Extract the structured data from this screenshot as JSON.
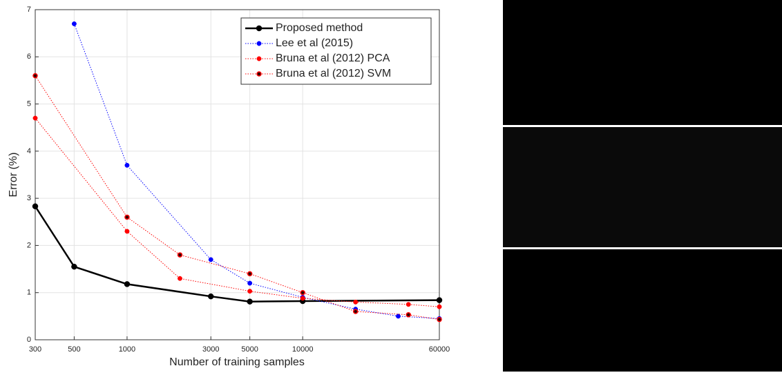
{
  "chart_data": {
    "type": "line",
    "xlabel": "Number of training samples",
    "ylabel": "Error (%)",
    "xscale": "log",
    "xlim": [
      300,
      60000
    ],
    "xticks": [
      300,
      500,
      1000,
      3000,
      5000,
      10000,
      60000
    ],
    "ylim": [
      0,
      7
    ],
    "yticks": [
      0,
      1,
      2,
      3,
      4,
      5,
      6,
      7
    ],
    "grid": true,
    "legend": "upper right",
    "series": [
      {
        "name": "Proposed method",
        "color": "#000000",
        "style": "solid",
        "marker": "black",
        "x": [
          300,
          500,
          1000,
          3000,
          5000,
          10000,
          60000
        ],
        "values": [
          2.83,
          1.55,
          1.18,
          0.92,
          0.81,
          0.82,
          0.84
        ]
      },
      {
        "name": "Lee et al (2015)",
        "color": "#0000ff",
        "style": "dotted",
        "marker": "blue",
        "x": [
          500,
          1000,
          3000,
          5000,
          10000,
          20000,
          35000,
          60000
        ],
        "values": [
          6.7,
          3.7,
          1.7,
          1.2,
          0.9,
          0.65,
          0.5,
          0.45
        ]
      },
      {
        "name": "Bruna et al (2012) PCA",
        "color": "#ff0000",
        "style": "dotted",
        "marker": "red",
        "x": [
          300,
          1000,
          2000,
          5000,
          10000,
          20000,
          40000,
          60000
        ],
        "values": [
          4.7,
          2.3,
          1.3,
          1.03,
          0.88,
          0.8,
          0.75,
          0.7
        ]
      },
      {
        "name": "Bruna et al (2012) SVM",
        "color": "#ff0000",
        "style": "dotted",
        "marker": "redblack",
        "x": [
          300,
          1000,
          2000,
          5000,
          10000,
          20000,
          40000,
          60000
        ],
        "values": [
          5.6,
          2.6,
          1.8,
          1.4,
          1.0,
          0.6,
          0.53,
          0.43
        ]
      }
    ]
  }
}
